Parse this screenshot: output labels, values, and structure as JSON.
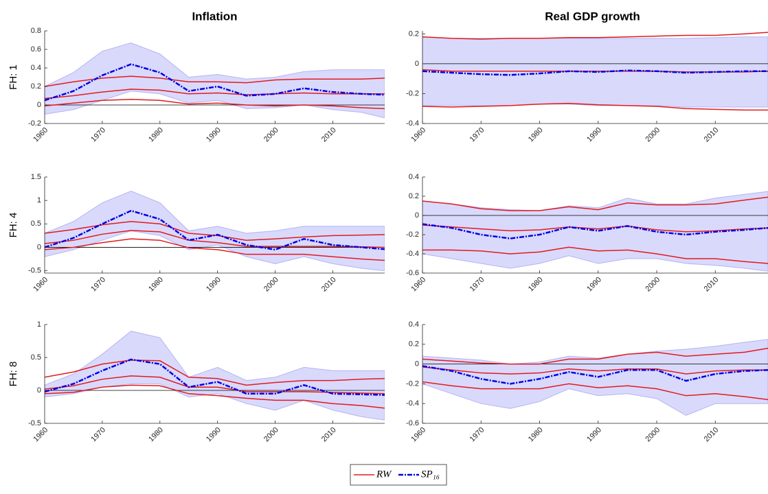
{
  "legend": [
    {
      "name": "RW",
      "color": "#e3191c"
    },
    {
      "name": "SP₁₆",
      "color": "#0000e6",
      "band_color": "#d9d9fc"
    }
  ],
  "chart_data": [
    {
      "type": "line",
      "title": "Inflation",
      "ylabel": "FH: 1",
      "x": [
        1960,
        1965,
        1970,
        1975,
        1980,
        1985,
        1990,
        1995,
        2000,
        2005,
        2010,
        2015,
        2019
      ],
      "xlim": [
        1960,
        2019
      ],
      "xticks": [
        1960,
        1970,
        1980,
        1990,
        2000,
        2010
      ],
      "ylim": [
        -0.2,
        0.8
      ],
      "yticks": [
        -0.2,
        0,
        0.2,
        0.4,
        0.6,
        0.8
      ],
      "sp_upper": [
        0.2,
        0.35,
        0.58,
        0.67,
        0.55,
        0.3,
        0.33,
        0.28,
        0.3,
        0.36,
        0.38,
        0.38,
        0.38
      ],
      "sp_lower": [
        -0.1,
        -0.05,
        0.05,
        0.15,
        0.12,
        0.02,
        0.05,
        -0.04,
        -0.03,
        0.0,
        -0.05,
        -0.08,
        -0.14
      ],
      "rw_upper": [
        0.2,
        0.25,
        0.29,
        0.31,
        0.29,
        0.25,
        0.25,
        0.24,
        0.27,
        0.28,
        0.28,
        0.28,
        0.29
      ],
      "rw_median": [
        0.07,
        0.1,
        0.14,
        0.17,
        0.16,
        0.12,
        0.13,
        0.11,
        0.12,
        0.13,
        0.12,
        0.12,
        0.12
      ],
      "rw_lower": [
        -0.01,
        0.02,
        0.05,
        0.06,
        0.05,
        0.01,
        0.02,
        0.0,
        -0.01,
        0.0,
        -0.01,
        -0.03,
        -0.04
      ],
      "sp_median": [
        0.05,
        0.15,
        0.32,
        0.44,
        0.35,
        0.15,
        0.2,
        0.1,
        0.12,
        0.18,
        0.14,
        0.12,
        0.11
      ]
    },
    {
      "type": "line",
      "title": "Real GDP growth",
      "x": [
        1960,
        1965,
        1970,
        1975,
        1980,
        1985,
        1990,
        1995,
        2000,
        2005,
        2010,
        2015,
        2019
      ],
      "xlim": [
        1960,
        2019
      ],
      "xticks": [
        1960,
        1970,
        1980,
        1990,
        2000,
        2010
      ],
      "ylim": [
        -0.4,
        0.22
      ],
      "yticks": [
        -0.4,
        -0.2,
        0,
        0.2
      ],
      "sp_upper": [
        0.18,
        0.17,
        0.17,
        0.17,
        0.17,
        0.17,
        0.17,
        0.17,
        0.17,
        0.17,
        0.175,
        0.18,
        0.18
      ],
      "sp_lower": [
        -0.28,
        -0.28,
        -0.28,
        -0.28,
        -0.27,
        -0.27,
        -0.28,
        -0.28,
        -0.28,
        -0.29,
        -0.29,
        -0.29,
        -0.29
      ],
      "rw_upper": [
        0.18,
        0.17,
        0.165,
        0.17,
        0.17,
        0.175,
        0.175,
        0.18,
        0.185,
        0.19,
        0.19,
        0.2,
        0.21
      ],
      "rw_median": [
        -0.04,
        -0.05,
        -0.05,
        -0.05,
        -0.05,
        -0.05,
        -0.05,
        -0.05,
        -0.05,
        -0.055,
        -0.055,
        -0.055,
        -0.05
      ],
      "rw_lower": [
        -0.285,
        -0.29,
        -0.285,
        -0.28,
        -0.27,
        -0.265,
        -0.275,
        -0.28,
        -0.285,
        -0.3,
        -0.305,
        -0.31,
        -0.31
      ],
      "sp_median": [
        -0.05,
        -0.06,
        -0.07,
        -0.075,
        -0.065,
        -0.05,
        -0.055,
        -0.045,
        -0.05,
        -0.06,
        -0.055,
        -0.05,
        -0.05
      ]
    },
    {
      "type": "line",
      "ylabel": "FH: 4",
      "x": [
        1960,
        1965,
        1970,
        1975,
        1980,
        1985,
        1990,
        1995,
        2000,
        2005,
        2010,
        2015,
        2019
      ],
      "xlim": [
        1960,
        2019
      ],
      "xticks": [
        1960,
        1970,
        1980,
        1990,
        2000,
        2010
      ],
      "ylim": [
        -0.55,
        1.5
      ],
      "yticks": [
        -0.5,
        0,
        0.5,
        1,
        1.5
      ],
      "sp_upper": [
        0.3,
        0.55,
        0.95,
        1.2,
        0.95,
        0.35,
        0.45,
        0.3,
        0.35,
        0.45,
        0.45,
        0.45,
        0.45
      ],
      "sp_lower": [
        -0.2,
        -0.05,
        0.15,
        0.35,
        0.25,
        -0.05,
        0.05,
        -0.2,
        -0.35,
        -0.2,
        -0.35,
        -0.45,
        -0.5
      ],
      "rw_upper": [
        0.3,
        0.38,
        0.48,
        0.55,
        0.5,
        0.3,
        0.25,
        0.15,
        0.18,
        0.22,
        0.25,
        0.26,
        0.27
      ],
      "rw_median": [
        0.08,
        0.15,
        0.28,
        0.36,
        0.33,
        0.15,
        0.1,
        0.02,
        0.02,
        0.02,
        0.02,
        0.01,
        0.0
      ],
      "rw_lower": [
        -0.05,
        0.0,
        0.1,
        0.18,
        0.15,
        -0.01,
        -0.05,
        -0.15,
        -0.15,
        -0.15,
        -0.2,
        -0.25,
        -0.28
      ],
      "sp_median": [
        0.0,
        0.2,
        0.5,
        0.78,
        0.6,
        0.15,
        0.27,
        0.05,
        -0.05,
        0.18,
        0.05,
        0.0,
        -0.04
      ]
    },
    {
      "type": "line",
      "x": [
        1960,
        1965,
        1970,
        1975,
        1980,
        1985,
        1990,
        1995,
        2000,
        2005,
        2010,
        2015,
        2019
      ],
      "xlim": [
        1960,
        2019
      ],
      "xticks": [
        1960,
        1970,
        1980,
        1990,
        2000,
        2010
      ],
      "ylim": [
        -0.6,
        0.4
      ],
      "yticks": [
        -0.6,
        -0.4,
        -0.2,
        0,
        0.2,
        0.4
      ],
      "sp_upper": [
        0.15,
        0.12,
        0.08,
        0.06,
        0.05,
        0.1,
        0.08,
        0.18,
        0.12,
        0.12,
        0.18,
        0.22,
        0.25
      ],
      "sp_lower": [
        -0.4,
        -0.45,
        -0.5,
        -0.55,
        -0.5,
        -0.42,
        -0.5,
        -0.45,
        -0.45,
        -0.5,
        -0.52,
        -0.55,
        -0.58
      ],
      "rw_upper": [
        0.15,
        0.12,
        0.07,
        0.05,
        0.05,
        0.09,
        0.06,
        0.13,
        0.11,
        0.11,
        0.12,
        0.16,
        0.19
      ],
      "rw_median": [
        -0.1,
        -0.12,
        -0.14,
        -0.16,
        -0.15,
        -0.12,
        -0.14,
        -0.11,
        -0.15,
        -0.17,
        -0.16,
        -0.14,
        -0.13
      ],
      "rw_lower": [
        -0.36,
        -0.36,
        -0.37,
        -0.4,
        -0.38,
        -0.33,
        -0.37,
        -0.36,
        -0.4,
        -0.45,
        -0.45,
        -0.48,
        -0.5
      ],
      "sp_median": [
        -0.09,
        -0.13,
        -0.2,
        -0.24,
        -0.2,
        -0.12,
        -0.16,
        -0.11,
        -0.17,
        -0.2,
        -0.17,
        -0.15,
        -0.13
      ]
    },
    {
      "type": "line",
      "ylabel": "FH: 8",
      "x": [
        1960,
        1965,
        1970,
        1975,
        1980,
        1985,
        1990,
        1995,
        2000,
        2005,
        2010,
        2015,
        2019
      ],
      "xlim": [
        1960,
        2019
      ],
      "xticks": [
        1960,
        1970,
        1980,
        1990,
        2000,
        2010
      ],
      "ylim": [
        -0.5,
        1
      ],
      "yticks": [
        -0.5,
        0,
        0.5,
        1
      ],
      "sp_upper": [
        0.08,
        0.25,
        0.55,
        0.9,
        0.8,
        0.2,
        0.35,
        0.15,
        0.2,
        0.35,
        0.3,
        0.3,
        0.3
      ],
      "sp_lower": [
        -0.1,
        -0.05,
        0.05,
        0.1,
        0.1,
        -0.1,
        -0.05,
        -0.2,
        -0.3,
        -0.15,
        -0.3,
        -0.4,
        -0.45
      ],
      "rw_upper": [
        0.2,
        0.28,
        0.4,
        0.46,
        0.45,
        0.2,
        0.18,
        0.08,
        0.12,
        0.15,
        0.15,
        0.17,
        0.18
      ],
      "rw_median": [
        0.02,
        0.07,
        0.17,
        0.22,
        0.2,
        0.05,
        0.05,
        -0.02,
        -0.02,
        -0.02,
        -0.03,
        -0.04,
        -0.05
      ],
      "rw_lower": [
        -0.05,
        -0.03,
        0.05,
        0.08,
        0.07,
        -0.05,
        -0.08,
        -0.12,
        -0.15,
        -0.15,
        -0.2,
        -0.23,
        -0.27
      ],
      "sp_median": [
        -0.02,
        0.1,
        0.3,
        0.47,
        0.4,
        0.05,
        0.13,
        -0.05,
        -0.05,
        0.08,
        -0.05,
        -0.06,
        -0.07
      ]
    },
    {
      "type": "line",
      "x": [
        1960,
        1965,
        1970,
        1975,
        1980,
        1985,
        1990,
        1995,
        2000,
        2005,
        2010,
        2015,
        2019
      ],
      "xlim": [
        1960,
        2019
      ],
      "xticks": [
        1960,
        1970,
        1980,
        1990,
        2000,
        2010
      ],
      "ylim": [
        -0.6,
        0.4
      ],
      "yticks": [
        -0.6,
        -0.4,
        -0.2,
        0,
        0.2,
        0.4
      ],
      "sp_upper": [
        0.08,
        0.06,
        0.04,
        0.0,
        0.02,
        0.08,
        0.06,
        0.1,
        0.13,
        0.15,
        0.18,
        0.22,
        0.25
      ],
      "sp_lower": [
        -0.2,
        -0.3,
        -0.4,
        -0.45,
        -0.38,
        -0.25,
        -0.32,
        -0.3,
        -0.35,
        -0.52,
        -0.4,
        -0.4,
        -0.4
      ],
      "rw_upper": [
        0.05,
        0.03,
        0.01,
        0.0,
        0.0,
        0.05,
        0.05,
        0.1,
        0.12,
        0.08,
        0.1,
        0.12,
        0.16
      ],
      "rw_median": [
        -0.03,
        -0.06,
        -0.09,
        -0.1,
        -0.09,
        -0.05,
        -0.07,
        -0.05,
        -0.05,
        -0.1,
        -0.07,
        -0.06,
        -0.06
      ],
      "rw_lower": [
        -0.18,
        -0.22,
        -0.25,
        -0.25,
        -0.25,
        -0.2,
        -0.24,
        -0.22,
        -0.25,
        -0.32,
        -0.3,
        -0.33,
        -0.36
      ],
      "sp_median": [
        -0.02,
        -0.07,
        -0.15,
        -0.2,
        -0.15,
        -0.08,
        -0.13,
        -0.06,
        -0.06,
        -0.17,
        -0.1,
        -0.07,
        -0.06
      ]
    }
  ]
}
